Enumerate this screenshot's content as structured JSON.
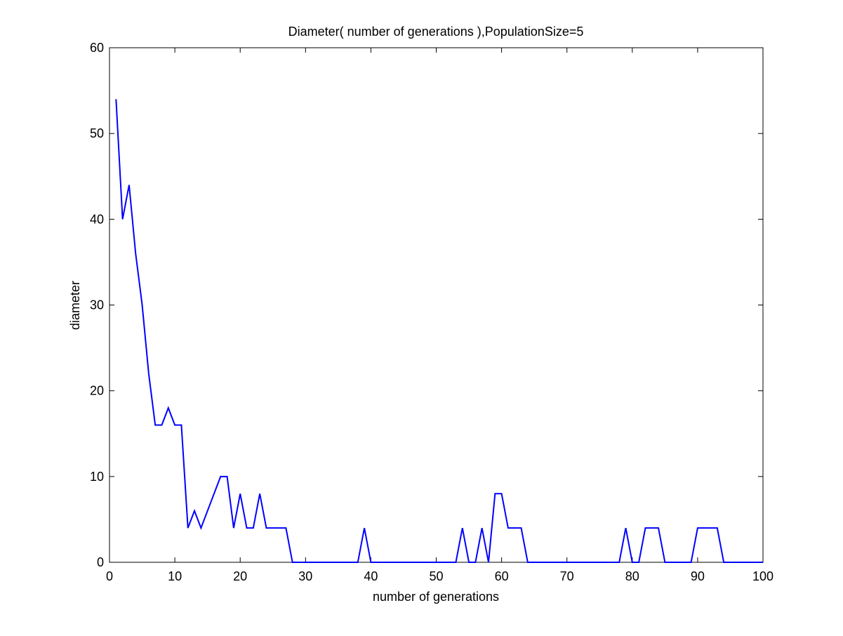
{
  "chart_data": {
    "type": "line",
    "title": "Diameter( number of generations ),PopulationSize=5",
    "x_label": "number of generations",
    "y_label": "diameter",
    "x": [
      1,
      2,
      3,
      4,
      5,
      6,
      7,
      8,
      9,
      10,
      11,
      12,
      13,
      14,
      15,
      16,
      17,
      18,
      19,
      20,
      21,
      22,
      23,
      24,
      25,
      26,
      27,
      28,
      29,
      30,
      31,
      32,
      33,
      34,
      35,
      36,
      37,
      38,
      39,
      40,
      41,
      42,
      43,
      44,
      45,
      46,
      47,
      48,
      49,
      50,
      51,
      52,
      53,
      54,
      55,
      56,
      57,
      58,
      59,
      60,
      61,
      62,
      63,
      64,
      65,
      66,
      67,
      68,
      69,
      70,
      71,
      72,
      73,
      74,
      75,
      76,
      77,
      78,
      79,
      80,
      81,
      82,
      83,
      84,
      85,
      86,
      87,
      88,
      89,
      90,
      91,
      92,
      93,
      94,
      95,
      96,
      97,
      98,
      99,
      100
    ],
    "series": [
      {
        "color": "#0000ff",
        "values": [
          54,
          40,
          44,
          36,
          30,
          22,
          16,
          16,
          18,
          16,
          16,
          4,
          6,
          4,
          6,
          8,
          10,
          10,
          4,
          8,
          4,
          4,
          8,
          4,
          4,
          4,
          4,
          0,
          0,
          0,
          0,
          0,
          0,
          0,
          0,
          0,
          0,
          0,
          4,
          0,
          0,
          0,
          0,
          0,
          0,
          0,
          0,
          0,
          0,
          0,
          0,
          0,
          0,
          4,
          0,
          0,
          4,
          0,
          8,
          8,
          4,
          4,
          4,
          0,
          0,
          0,
          0,
          0,
          0,
          0,
          0,
          0,
          0,
          0,
          0,
          0,
          0,
          0,
          4,
          0,
          0,
          4,
          4,
          4,
          0,
          0,
          0,
          0,
          0,
          4,
          4,
          4,
          4,
          0,
          0,
          0,
          0,
          0,
          0,
          0
        ]
      }
    ],
    "xlim": [
      0,
      100
    ],
    "xticks": [
      0,
      10,
      20,
      30,
      40,
      50,
      60,
      70,
      80,
      90,
      100
    ],
    "ylim": [
      0,
      60
    ],
    "yticks": [
      0,
      10,
      20,
      30,
      40,
      50,
      60
    ],
    "grid": false
  }
}
